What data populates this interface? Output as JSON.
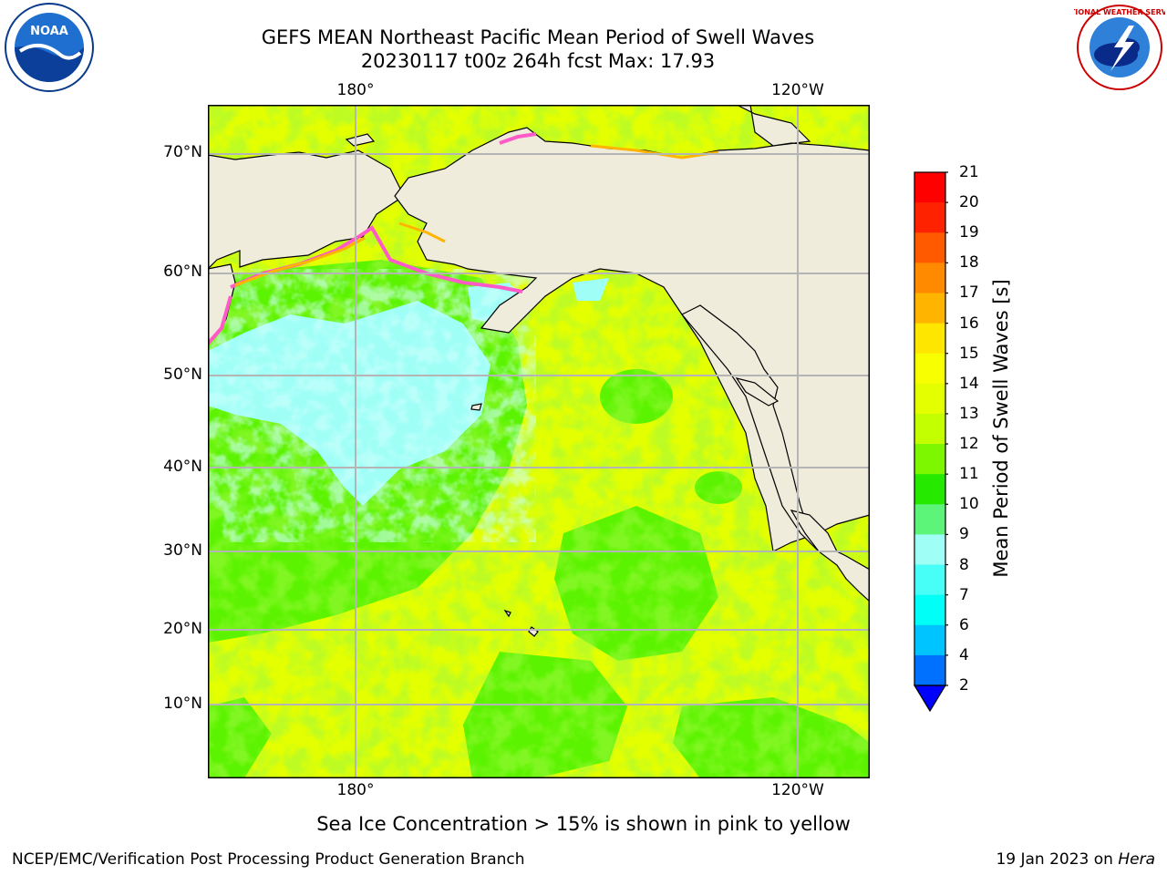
{
  "header": {
    "title_line1": "GEFS MEAN Northeast Pacific Mean Period of Swell Waves",
    "title_line2": "20230117 t00z 264h fcst   Max: 17.93"
  },
  "logos": {
    "noaa_text": "NOAA",
    "nws_text": "NATIONAL WEATHER SERVICE"
  },
  "map": {
    "lon_labels_top": [
      "180°",
      "120°W"
    ],
    "lon_labels_bottom": [
      "180°",
      "120°W"
    ],
    "lat_labels": [
      "70°N",
      "60°N",
      "50°N",
      "40°N",
      "30°N",
      "20°N",
      "10°N"
    ],
    "colors": {
      "land": "#efecdc",
      "ocean_yellow": "#e4ff00",
      "ocean_green": "#5cf300",
      "ocean_cyan": "#9ffff7",
      "ice_pink": "#ff5ac8"
    }
  },
  "colorbar": {
    "title": "Mean Period of Swell Waves [s]",
    "ticks": [
      "21",
      "20",
      "19",
      "18",
      "17",
      "16",
      "15",
      "14",
      "13",
      "12",
      "11",
      "10",
      "9",
      "8",
      "7",
      "6",
      "4",
      "2"
    ],
    "colors": [
      "#ff0000",
      "#ff2200",
      "#ff5a00",
      "#ff8a00",
      "#ffb400",
      "#ffe600",
      "#f7ff00",
      "#e4ff00",
      "#c3ff00",
      "#7cf700",
      "#25ea00",
      "#5cf57a",
      "#9ffff7",
      "#47fff7",
      "#00fff7",
      "#00c4ff",
      "#0070ff"
    ],
    "under_color": "#0000ff"
  },
  "footer": {
    "note": "Sea Ice Concentration > 15% is shown in pink to yellow",
    "left": "NCEP/EMC/Verification Post Processing Product Generation Branch",
    "date": "19 Jan 2023 on ",
    "host": "Hera"
  }
}
